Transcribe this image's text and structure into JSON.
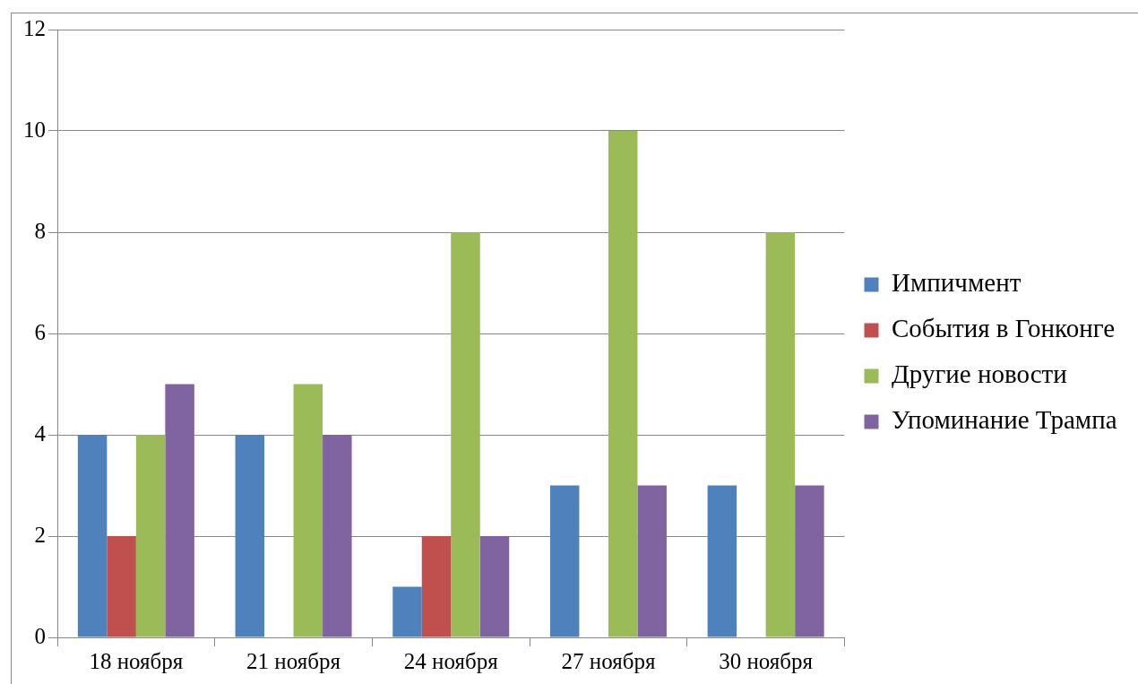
{
  "chart_data": {
    "type": "bar",
    "categories": [
      "18 ноября",
      "21 ноября",
      "24 ноября",
      "27 ноября",
      "30 ноября"
    ],
    "series": [
      {
        "name": "Импичмент",
        "color": "#4f81bd",
        "values": [
          4,
          4,
          1,
          3,
          3
        ]
      },
      {
        "name": "События в Гонконге",
        "color": "#c0504d",
        "values": [
          2,
          0,
          2,
          0,
          0
        ]
      },
      {
        "name": "Другие новости",
        "color": "#9bbb59",
        "values": [
          4,
          5,
          8,
          10,
          8
        ]
      },
      {
        "name": "Упоминание Трампа",
        "color": "#8064a2",
        "values": [
          5,
          4,
          2,
          3,
          3
        ]
      }
    ],
    "ylim": [
      0,
      12
    ],
    "yticks": [
      0,
      2,
      4,
      6,
      8,
      10,
      12
    ],
    "grid": "y",
    "legend": "right"
  }
}
